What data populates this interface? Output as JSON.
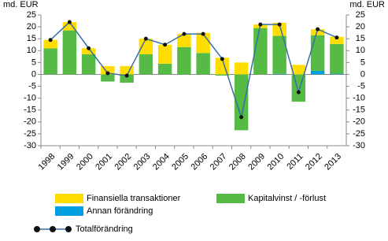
{
  "chart_data": {
    "type": "bar",
    "y_label": "md. EUR",
    "y2_label": "md. EUR",
    "categories": [
      "1998",
      "1999",
      "2000",
      "2001",
      "2002",
      "2003",
      "2004",
      "2005",
      "2006",
      "2007",
      "2008",
      "2009",
      "2010",
      "2011",
      "2012",
      "2013"
    ],
    "series": [
      {
        "name": "Annan förändring",
        "color": "#00a0e0",
        "values": [
          0,
          0,
          0,
          0,
          0,
          0,
          0,
          0,
          0,
          0,
          0,
          0,
          0.2,
          0,
          1.5,
          0.3
        ]
      },
      {
        "name": "Kapitalvinst / -förlust",
        "color": "#55bb44",
        "values": [
          11,
          18.5,
          8.5,
          -3,
          -3.5,
          8.5,
          4.5,
          11.5,
          9,
          -0.5,
          -23.5,
          19.5,
          16,
          -11.5,
          15,
          12.5
        ]
      },
      {
        "name": "Finansiella transaktioner",
        "color": "#ffdd00",
        "values": [
          3.5,
          3.5,
          2.5,
          3.5,
          3.5,
          6.5,
          8,
          5.5,
          8.5,
          7,
          5,
          1.5,
          5.5,
          4,
          2.5,
          3
        ]
      },
      {
        "name": "Totalförändring",
        "type": "line",
        "color": "#3a6ea5",
        "marker_color": "#111111",
        "values": [
          14.5,
          22,
          11,
          0.5,
          -0.5,
          15,
          12.5,
          17,
          17,
          6.5,
          -18,
          21,
          21,
          -7.5,
          19,
          15.5
        ]
      }
    ],
    "ylim": [
      -30,
      25
    ],
    "yticks": [
      -30,
      -25,
      -20,
      -15,
      -10,
      -5,
      0,
      5,
      10,
      15,
      20,
      25
    ],
    "y2lim": [
      -30,
      25
    ],
    "y2ticks": [
      -30,
      -25,
      -20,
      -15,
      -10,
      -5,
      0,
      5,
      10,
      15,
      20,
      25
    ]
  }
}
